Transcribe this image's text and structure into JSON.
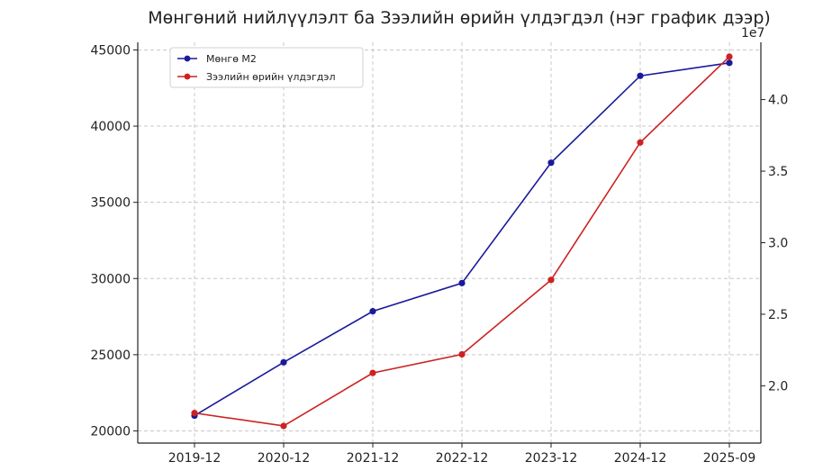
{
  "chart_data": {
    "type": "line",
    "title": "Мөнгөний нийлүүлэлт ба Зээлийн өрийн үлдэгдэл (нэг график дээр)",
    "categories": [
      "2019-12",
      "2020-12",
      "2021-12",
      "2022-12",
      "2023-12",
      "2024-12",
      "2025-09"
    ],
    "series": [
      {
        "name": "Мөнгө М2",
        "axis": "left",
        "color": "#1a1a9c",
        "values": [
          21000,
          24500,
          27850,
          29700,
          37600,
          43300,
          44150
        ]
      },
      {
        "name": "Зээлийн өрийн үлдэгдэл",
        "axis": "right",
        "color": "#cc2222",
        "values": [
          18100000,
          17200000,
          20900000,
          22200000,
          27400000,
          37000000,
          43000000
        ]
      }
    ],
    "left_axis": {
      "ylim": [
        19200,
        45500
      ],
      "ticks": [
        20000,
        25000,
        30000,
        35000,
        40000,
        45000
      ],
      "tick_labels": [
        "20000",
        "25000",
        "30000",
        "35000",
        "40000",
        "45000"
      ]
    },
    "right_axis": {
      "ylim": [
        16000000,
        44000000
      ],
      "ticks": [
        20000000,
        25000000,
        30000000,
        35000000,
        40000000
      ],
      "tick_labels": [
        "2.0",
        "2.5",
        "3.0",
        "3.5",
        "4.0"
      ],
      "offset_text": "1e7"
    },
    "grid": true,
    "legend_position": "top-left"
  }
}
